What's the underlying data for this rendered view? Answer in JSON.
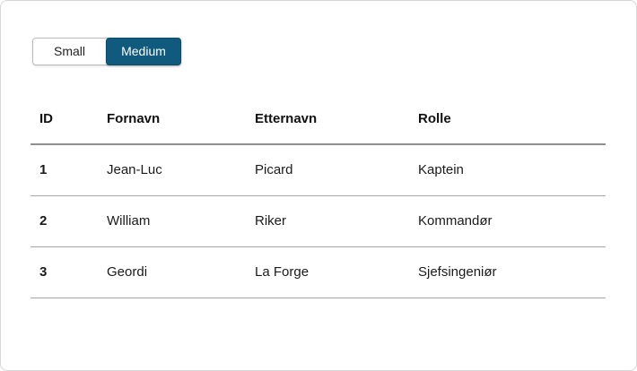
{
  "size_toggle": {
    "options": [
      {
        "label": "Small",
        "selected": false
      },
      {
        "label": "Medium",
        "selected": true
      }
    ],
    "selected_value": "Medium"
  },
  "table": {
    "columns": [
      "ID",
      "Fornavn",
      "Etternavn",
      "Rolle"
    ],
    "rows": [
      {
        "id": "1",
        "fornavn": "Jean-Luc",
        "etternavn": "Picard",
        "rolle": "Kaptein"
      },
      {
        "id": "2",
        "fornavn": "William",
        "etternavn": "Riker",
        "rolle": "Kommandør"
      },
      {
        "id": "3",
        "fornavn": "Geordi",
        "etternavn": "La Forge",
        "rolle": "Sjefsingeniør"
      }
    ]
  },
  "colors": {
    "selected_button_bg": "#0f5a7d",
    "selected_button_text": "#ffffff",
    "header_border": "#8f8f8f",
    "row_border": "#a6a6a6"
  }
}
